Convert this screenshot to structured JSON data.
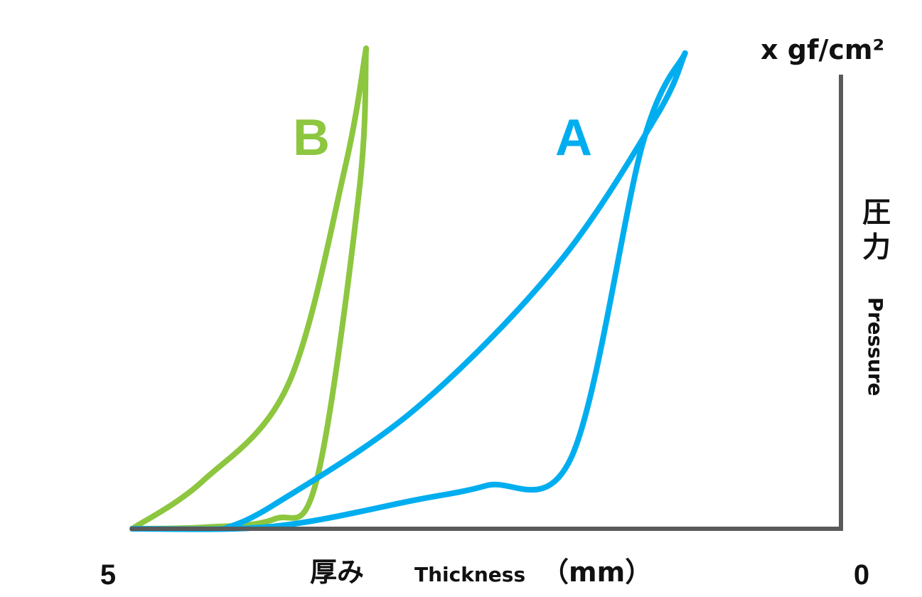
{
  "chart_data": {
    "type": "line",
    "x_axis": {
      "label_ja": "厚み",
      "label_en": "Thickness",
      "unit": "（mm）",
      "reversed": true,
      "range": [
        5,
        0
      ],
      "tick_labels": [
        "5",
        "0"
      ]
    },
    "y_axis": {
      "label_ja": "圧力",
      "label_en": "Pressure",
      "unit": "x gf/cm²",
      "position": "right"
    },
    "grid": false,
    "series": [
      {
        "name": "A",
        "color": "#00aeef",
        "loading_curve": [
          [
            5.0,
            0.0
          ],
          [
            4.0,
            0.005
          ],
          [
            3.0,
            0.06
          ],
          [
            2.5,
            0.09
          ],
          [
            1.9,
            0.15
          ],
          [
            1.4,
            0.8
          ],
          [
            1.1,
            0.99
          ]
        ],
        "unloading_curve": [
          [
            1.1,
            0.99
          ],
          [
            1.3,
            0.86
          ],
          [
            2.0,
            0.55
          ],
          [
            3.0,
            0.25
          ],
          [
            4.0,
            0.05
          ],
          [
            4.35,
            0.0
          ]
        ]
      },
      {
        "name": "B",
        "color": "#8dc63f",
        "loading_curve": [
          [
            5.0,
            0.0
          ],
          [
            4.5,
            0.003
          ],
          [
            4.0,
            0.02
          ],
          [
            3.7,
            0.1
          ],
          [
            3.4,
            0.7
          ],
          [
            3.35,
            1.0
          ]
        ],
        "unloading_curve": [
          [
            3.35,
            1.0
          ],
          [
            3.5,
            0.75
          ],
          [
            3.9,
            0.3
          ],
          [
            4.5,
            0.1
          ],
          [
            5.0,
            0.0
          ]
        ]
      }
    ]
  }
}
